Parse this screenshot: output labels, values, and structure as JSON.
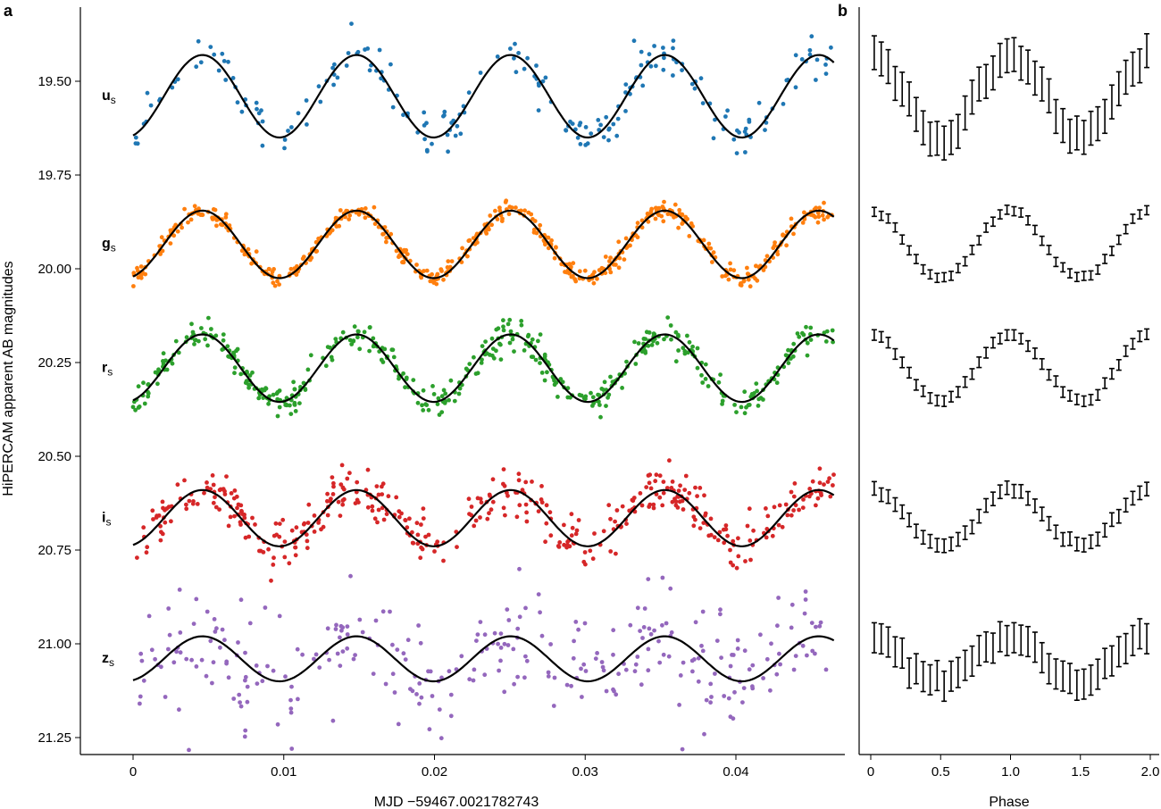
{
  "chart_data": {
    "type": "scatter",
    "panel_a": {
      "letter": "a",
      "xlabel": "MJD −59467.0021782743",
      "ylabel": "HiPERCAM apparent AB magnitudes",
      "xlim": [
        -0.0035,
        0.0465
      ],
      "ylim": [
        21.3,
        19.28
      ],
      "y_inverted": true,
      "xticks": [
        0,
        0.01,
        0.02,
        0.03,
        0.04
      ],
      "xtick_labels": [
        "0",
        "0.01",
        "0.02",
        "0.03",
        "0.04"
      ],
      "yticks": [
        19.5,
        19.75,
        20.0,
        20.25,
        20.5,
        20.75,
        21.0,
        21.25
      ],
      "ytick_labels": [
        "19.50",
        "19.75",
        "20.00",
        "20.25",
        "20.50",
        "20.75",
        "21.00",
        "21.25"
      ],
      "period": 0.010225,
      "model_phase_offset": 0.2
    },
    "panel_b": {
      "letter": "b",
      "xlabel": "Phase",
      "xlim": [
        -0.07,
        2.07
      ],
      "xticks": [
        0,
        0.5,
        1.0,
        1.5,
        2.0
      ],
      "xtick_labels": [
        "0",
        "0.5",
        "1.0",
        "1.5",
        "2.0"
      ],
      "phase_bins": 40
    },
    "series": [
      {
        "name": "u",
        "sub": "s",
        "color": "#1f77b4",
        "mean": 19.54,
        "amplitude": 0.11,
        "noise": 0.028,
        "n_points": 210,
        "phase_err": 0.045
      },
      {
        "name": "g",
        "sub": "s",
        "color": "#ff7f0e",
        "mean": 19.935,
        "amplitude": 0.09,
        "noise": 0.012,
        "n_points": 520,
        "phase_err": 0.012
      },
      {
        "name": "r",
        "sub": "s",
        "color": "#2ca02c",
        "mean": 20.265,
        "amplitude": 0.09,
        "noise": 0.02,
        "n_points": 470,
        "phase_err": 0.014
      },
      {
        "name": "i",
        "sub": "s",
        "color": "#d62728",
        "mean": 20.665,
        "amplitude": 0.075,
        "noise": 0.03,
        "n_points": 430,
        "phase_err": 0.018
      },
      {
        "name": "z",
        "sub": "s",
        "color": "#9467bd",
        "mean": 21.04,
        "amplitude": 0.06,
        "noise": 0.075,
        "n_points": 300,
        "phase_err": 0.04
      }
    ]
  }
}
